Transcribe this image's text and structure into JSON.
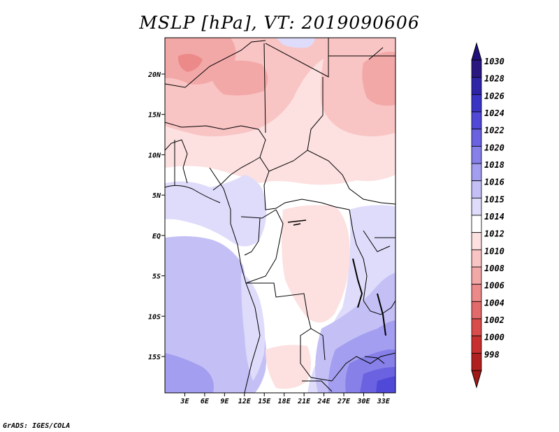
{
  "title": "MSLP [hPa], VT: 2019090606",
  "credit": "GrADS: IGES/COLA",
  "map": {
    "lon_range": [
      0,
      34.8
    ],
    "lat_range": [
      -19.5,
      24.5
    ],
    "lat_ticks": [
      {
        "value": 20,
        "label": "20N"
      },
      {
        "value": 15,
        "label": "15N"
      },
      {
        "value": 10,
        "label": "10N"
      },
      {
        "value": 5,
        "label": "5N"
      },
      {
        "value": 0,
        "label": "EQ"
      },
      {
        "value": -5,
        "label": "5S"
      },
      {
        "value": -10,
        "label": "10S"
      },
      {
        "value": -15,
        "label": "15S"
      }
    ],
    "lon_ticks": [
      {
        "value": 3,
        "label": "3E"
      },
      {
        "value": 6,
        "label": "6E"
      },
      {
        "value": 9,
        "label": "9E"
      },
      {
        "value": 12,
        "label": "12E"
      },
      {
        "value": 15,
        "label": "15E"
      },
      {
        "value": 18,
        "label": "18E"
      },
      {
        "value": 21,
        "label": "21E"
      },
      {
        "value": 24,
        "label": "24E"
      },
      {
        "value": 27,
        "label": "27E"
      },
      {
        "value": 30,
        "label": "30E"
      },
      {
        "value": 33,
        "label": "33E"
      }
    ]
  },
  "colorbar": {
    "levels": [
      {
        "label": "1030",
        "color": "#2a1880"
      },
      {
        "label": "1028",
        "color": "#2e24a8"
      },
      {
        "label": "1026",
        "color": "#3a34c4"
      },
      {
        "label": "1024",
        "color": "#5048d6"
      },
      {
        "label": "1022",
        "color": "#6a62e0"
      },
      {
        "label": "1020",
        "color": "#8680e8"
      },
      {
        "label": "1018",
        "color": "#a49ef0"
      },
      {
        "label": "1016",
        "color": "#c4c0f6"
      },
      {
        "label": "1015",
        "color": "#dedcfa"
      },
      {
        "label": "1014",
        "color": "#ffffff"
      },
      {
        "label": "1012",
        "color": "#fde0e0"
      },
      {
        "label": "1010",
        "color": "#f9c4c4"
      },
      {
        "label": "1008",
        "color": "#f3a8a8"
      },
      {
        "label": "1006",
        "color": "#ec8a8a"
      },
      {
        "label": "1004",
        "color": "#e26a6a"
      },
      {
        "label": "1002",
        "color": "#d84c4c"
      },
      {
        "label": "1000",
        "color": "#c83030"
      },
      {
        "label": "998",
        "color": "#b02020"
      }
    ],
    "top_arrow_color": "#1e107a",
    "bottom_arrow_color": "#a01818"
  }
}
